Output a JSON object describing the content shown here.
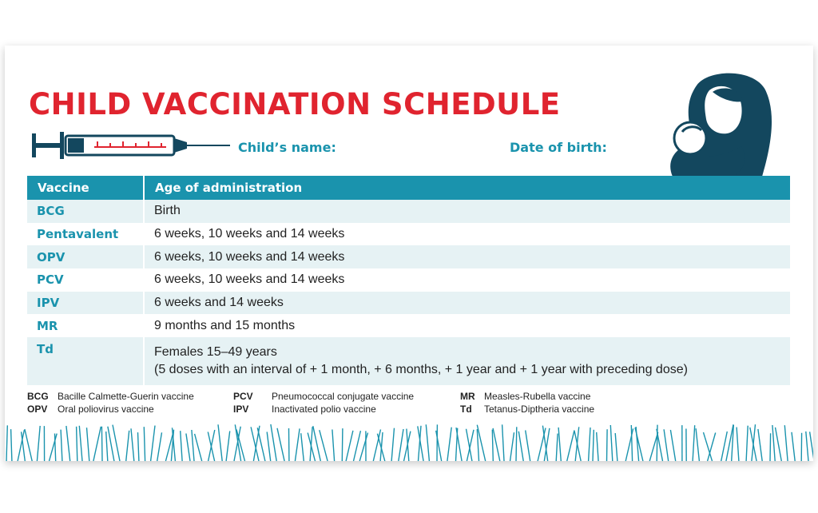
{
  "title": "CHILD VACCINATION SCHEDULE",
  "fields": {
    "childs_name": "Child’s name:",
    "date_of_birth": "Date of birth:"
  },
  "table": {
    "headers": [
      "Vaccine",
      "Age of administration"
    ],
    "rows": [
      {
        "vaccine": "BCG",
        "age": "Birth"
      },
      {
        "vaccine": "Pentavalent",
        "age": "6 weeks, 10 weeks and 14 weeks"
      },
      {
        "vaccine": "OPV",
        "age": "6 weeks, 10 weeks and 14 weeks"
      },
      {
        "vaccine": "PCV",
        "age": "6 weeks, 10 weeks and 14 weeks"
      },
      {
        "vaccine": "IPV",
        "age": "6 weeks and 14 weeks"
      },
      {
        "vaccine": "MR",
        "age": "9 months and 15 months"
      },
      {
        "vaccine": "Td",
        "age": "Females 15–49 years",
        "age_note": "(5 doses with an interval of + 1 month, + 6 months, + 1 year and + 1 year with preceding dose)"
      }
    ]
  },
  "legend": [
    [
      {
        "abbr": "BCG",
        "text": "Bacille Calmette-Guerin vaccine"
      },
      {
        "abbr": "OPV",
        "text": "Oral poliovirus vaccine"
      }
    ],
    [
      {
        "abbr": "PCV",
        "text": "Pneumococcal conjugate vaccine"
      },
      {
        "abbr": "IPV",
        "text": "Inactivated polio vaccine"
      }
    ],
    [
      {
        "abbr": "MR",
        "text": "Measles-Rubella vaccine"
      },
      {
        "abbr": "Td",
        "text": "Tetanus-Diptheria vaccine"
      }
    ]
  ],
  "colors": {
    "title_red": "#e0242f",
    "teal": "#1a93ad",
    "navy": "#13475e",
    "row_alt": "#e6f2f4"
  },
  "icons": {
    "syringe": "syringe-icon",
    "mother": "mother-breastfeeding-icon"
  }
}
